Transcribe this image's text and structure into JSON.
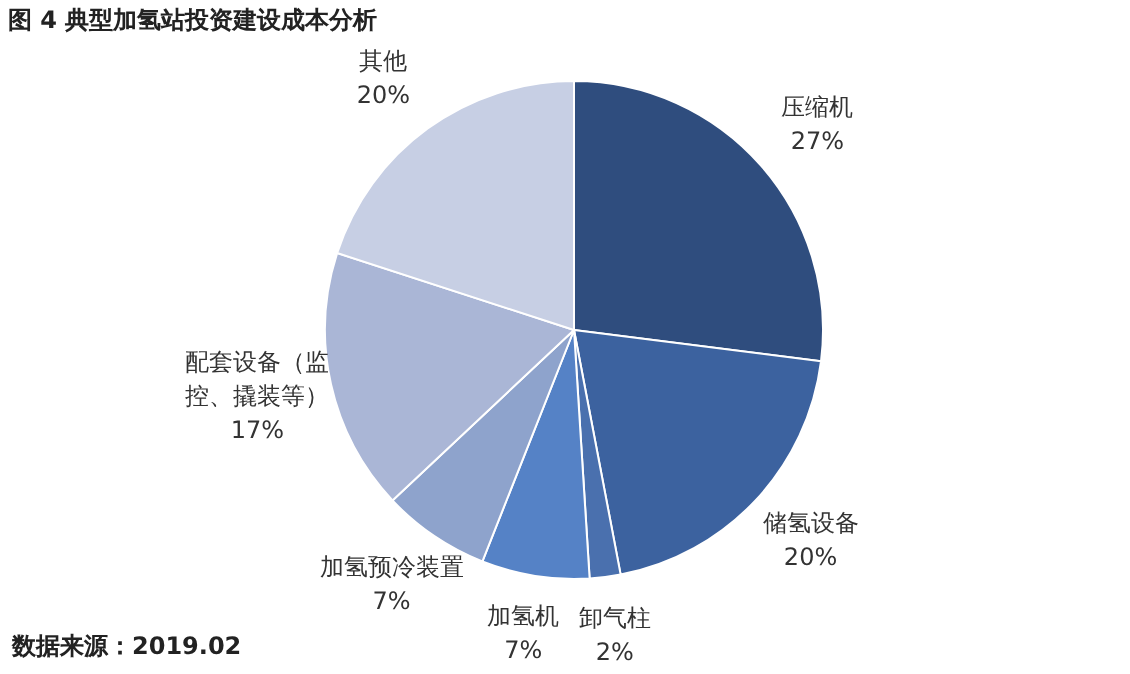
{
  "chart_data": {
    "type": "pie",
    "title": "图 4  典型加氢站投资建设成本分析",
    "categories": [
      "压缩机",
      "储氢设备",
      "卸气柱",
      "加氢机",
      "加氢预冷装置",
      "配套设备（监控、撬装等）",
      "其他"
    ],
    "values": [
      27,
      20,
      2,
      7,
      7,
      17,
      20
    ],
    "colors": [
      "#2f4d7e",
      "#3c629f",
      "#4a70ae",
      "#5582c6",
      "#8ea3cc",
      "#aab6d6",
      "#c7cfe4"
    ],
    "value_labels": [
      "27%",
      "20%",
      "2%",
      "7%",
      "7%",
      "17%",
      "20%"
    ],
    "annotations": [
      "数据来源：2019.02"
    ]
  }
}
